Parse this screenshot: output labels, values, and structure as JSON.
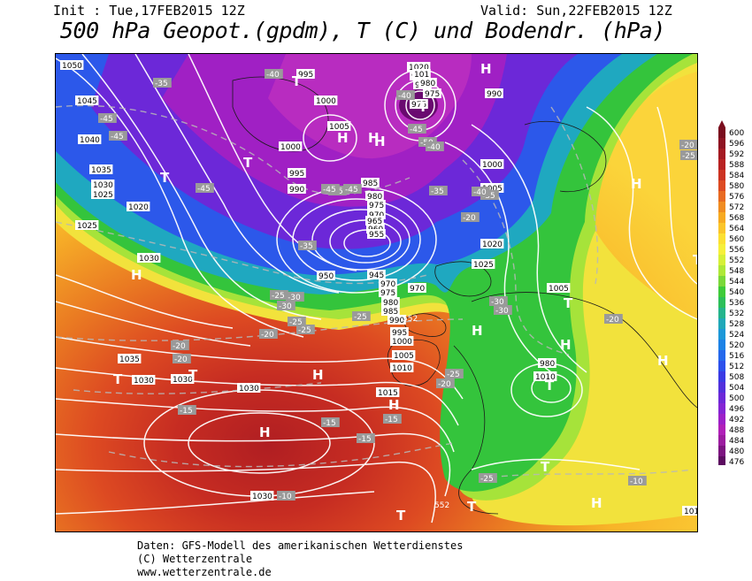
{
  "header": {
    "init": "Init : Tue,17FEB2015 12Z",
    "valid": "Valid: Sun,22FEB2015 12Z",
    "title": "500 hPa Geopot.(gpdm), T (C) und Bodendr. (hPa)"
  },
  "legend": {
    "values": [
      "600",
      "596",
      "592",
      "588",
      "584",
      "580",
      "576",
      "572",
      "568",
      "564",
      "560",
      "556",
      "552",
      "548",
      "544",
      "540",
      "536",
      "532",
      "528",
      "524",
      "520",
      "516",
      "512",
      "508",
      "504",
      "500",
      "496",
      "492",
      "488",
      "484",
      "480",
      "476"
    ],
    "colors": [
      "#7a0d1e",
      "#8e1422",
      "#a41a22",
      "#b82222",
      "#cc3322",
      "#dd4a22",
      "#e86a22",
      "#f08c22",
      "#f7aa22",
      "#fbc52a",
      "#fce032",
      "#f6f03a",
      "#d6f038",
      "#aee838",
      "#7ad83a",
      "#3ecb3a",
      "#2cbf5a",
      "#24b48c",
      "#20a8b8",
      "#1c98d8",
      "#1c82e6",
      "#2468ec",
      "#2c50ec",
      "#3a3ae4",
      "#5230dc",
      "#6c28d8",
      "#8424d4",
      "#9c20c8",
      "#b020b8",
      "#9c1ca0",
      "#7c1480",
      "#5c0c60"
    ]
  },
  "map": {
    "pressure_labels": [
      "1050",
      "1045",
      "1040",
      "1035",
      "1030",
      "1025",
      "1020",
      "1025",
      "1030",
      "1035",
      "1030",
      "1030",
      "1030",
      "1030",
      "995",
      "1000",
      "1005",
      "1000",
      "995",
      "990",
      "985",
      "980",
      "975",
      "970",
      "965",
      "960",
      "955",
      "950",
      "945",
      "970",
      "975",
      "980",
      "985",
      "990",
      "995",
      "1000",
      "1005",
      "1010",
      "1015",
      "1020",
      "1025",
      "1000",
      "1005",
      "990",
      "995",
      "985",
      "975",
      "970",
      "980",
      "1010",
      "1005",
      "1010",
      "1020",
      "101",
      "980",
      "975"
    ],
    "temp_labels": [
      "-35",
      "-40",
      "-45",
      "-45",
      "-40",
      "-45",
      "-45",
      "-45",
      "-50",
      "-45",
      "-45",
      "-40",
      "-35",
      "-30",
      "-25",
      "-30",
      "-25",
      "-20",
      "-25",
      "-20",
      "-20",
      "-15",
      "-15",
      "-15",
      "-15",
      "-10",
      "-25",
      "-35",
      "-30",
      "-30",
      "-25",
      "-20",
      "-25",
      "-20",
      "-20",
      "-10",
      "-35",
      "-40",
      "-20",
      "-25"
    ],
    "high_symbol": "H",
    "low_symbol": "T",
    "isohypse_labels": [
      "552",
      "552"
    ]
  },
  "footer": {
    "line1": "Daten: GFS-Modell des amerikanischen Wetterdienstes",
    "line2": "(C) Wetterzentrale",
    "line3": "www.wetterzentrale.de"
  }
}
